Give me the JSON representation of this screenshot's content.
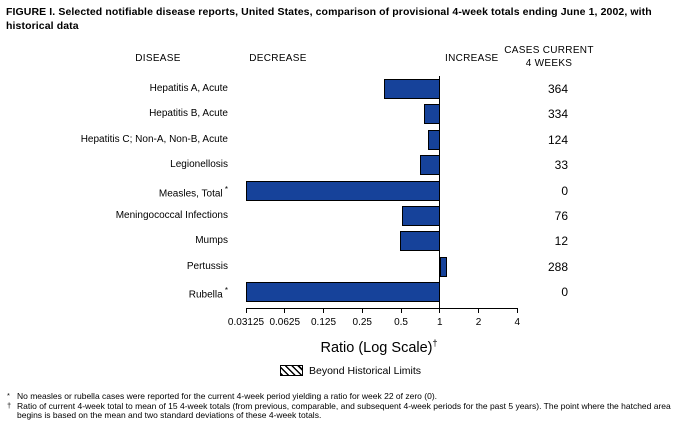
{
  "title": "FIGURE I. Selected notifiable disease reports, United States, comparison of provisional 4-week totals ending June 1, 2002, with historical data",
  "headers": {
    "disease": "DISEASE",
    "decrease": "DECREASE",
    "increase": "INCREASE",
    "cases_line1": "CASES CURRENT",
    "cases_line2": "4 WEEKS"
  },
  "chart_data": {
    "type": "bar",
    "orientation": "horizontal",
    "xscale": "log2",
    "xlabel": "Ratio (Log Scale)",
    "xlabel_superscript": "†",
    "xlim": [
      0.03125,
      4
    ],
    "baseline": 1,
    "tick_labels": [
      "0.03125",
      "0.0625",
      "0.125",
      "0.25",
      "0.5",
      "1",
      "2",
      "4"
    ],
    "tick_values": [
      0.03125,
      0.0625,
      0.125,
      0.25,
      0.5,
      1,
      2,
      4
    ],
    "bar_color": "#16429A",
    "grid": false,
    "rows": [
      {
        "disease": "Hepatitis A, Acute",
        "marker": "",
        "ratio": 0.37,
        "cases": "364"
      },
      {
        "disease": "Hepatitis B, Acute",
        "marker": "",
        "ratio": 0.76,
        "cases": "334"
      },
      {
        "disease": "Hepatitis C; Non-A, Non-B, Acute",
        "marker": "",
        "ratio": 0.81,
        "cases": "124"
      },
      {
        "disease": "Legionellosis",
        "marker": "",
        "ratio": 0.7,
        "cases": "33"
      },
      {
        "disease": "Measles, Total",
        "marker": "*",
        "ratio": 0,
        "cases": "0"
      },
      {
        "disease": "Meningococcal Infections",
        "marker": "",
        "ratio": 0.51,
        "cases": "76"
      },
      {
        "disease": "Mumps",
        "marker": "",
        "ratio": 0.49,
        "cases": "12"
      },
      {
        "disease": "Pertussis",
        "marker": "",
        "ratio": 1.13,
        "cases": "288"
      },
      {
        "disease": "Rubella",
        "marker": "*",
        "ratio": 0,
        "cases": "0"
      }
    ],
    "legend": {
      "label": "Beyond Historical Limits",
      "swatch": "hatched",
      "position": "bottom"
    }
  },
  "footnotes": [
    {
      "marker": "*",
      "text": "No measles or rubella cases were reported for the current 4-week period yielding a ratio for week 22 of zero (0)."
    },
    {
      "marker": "†",
      "text": "Ratio of current 4-week total to mean of 15 4-week totals (from previous, comparable, and subsequent 4-week periods for the past 5 years). The point where the hatched area begins is based on the mean and two standard deviations of these 4-week totals."
    }
  ]
}
